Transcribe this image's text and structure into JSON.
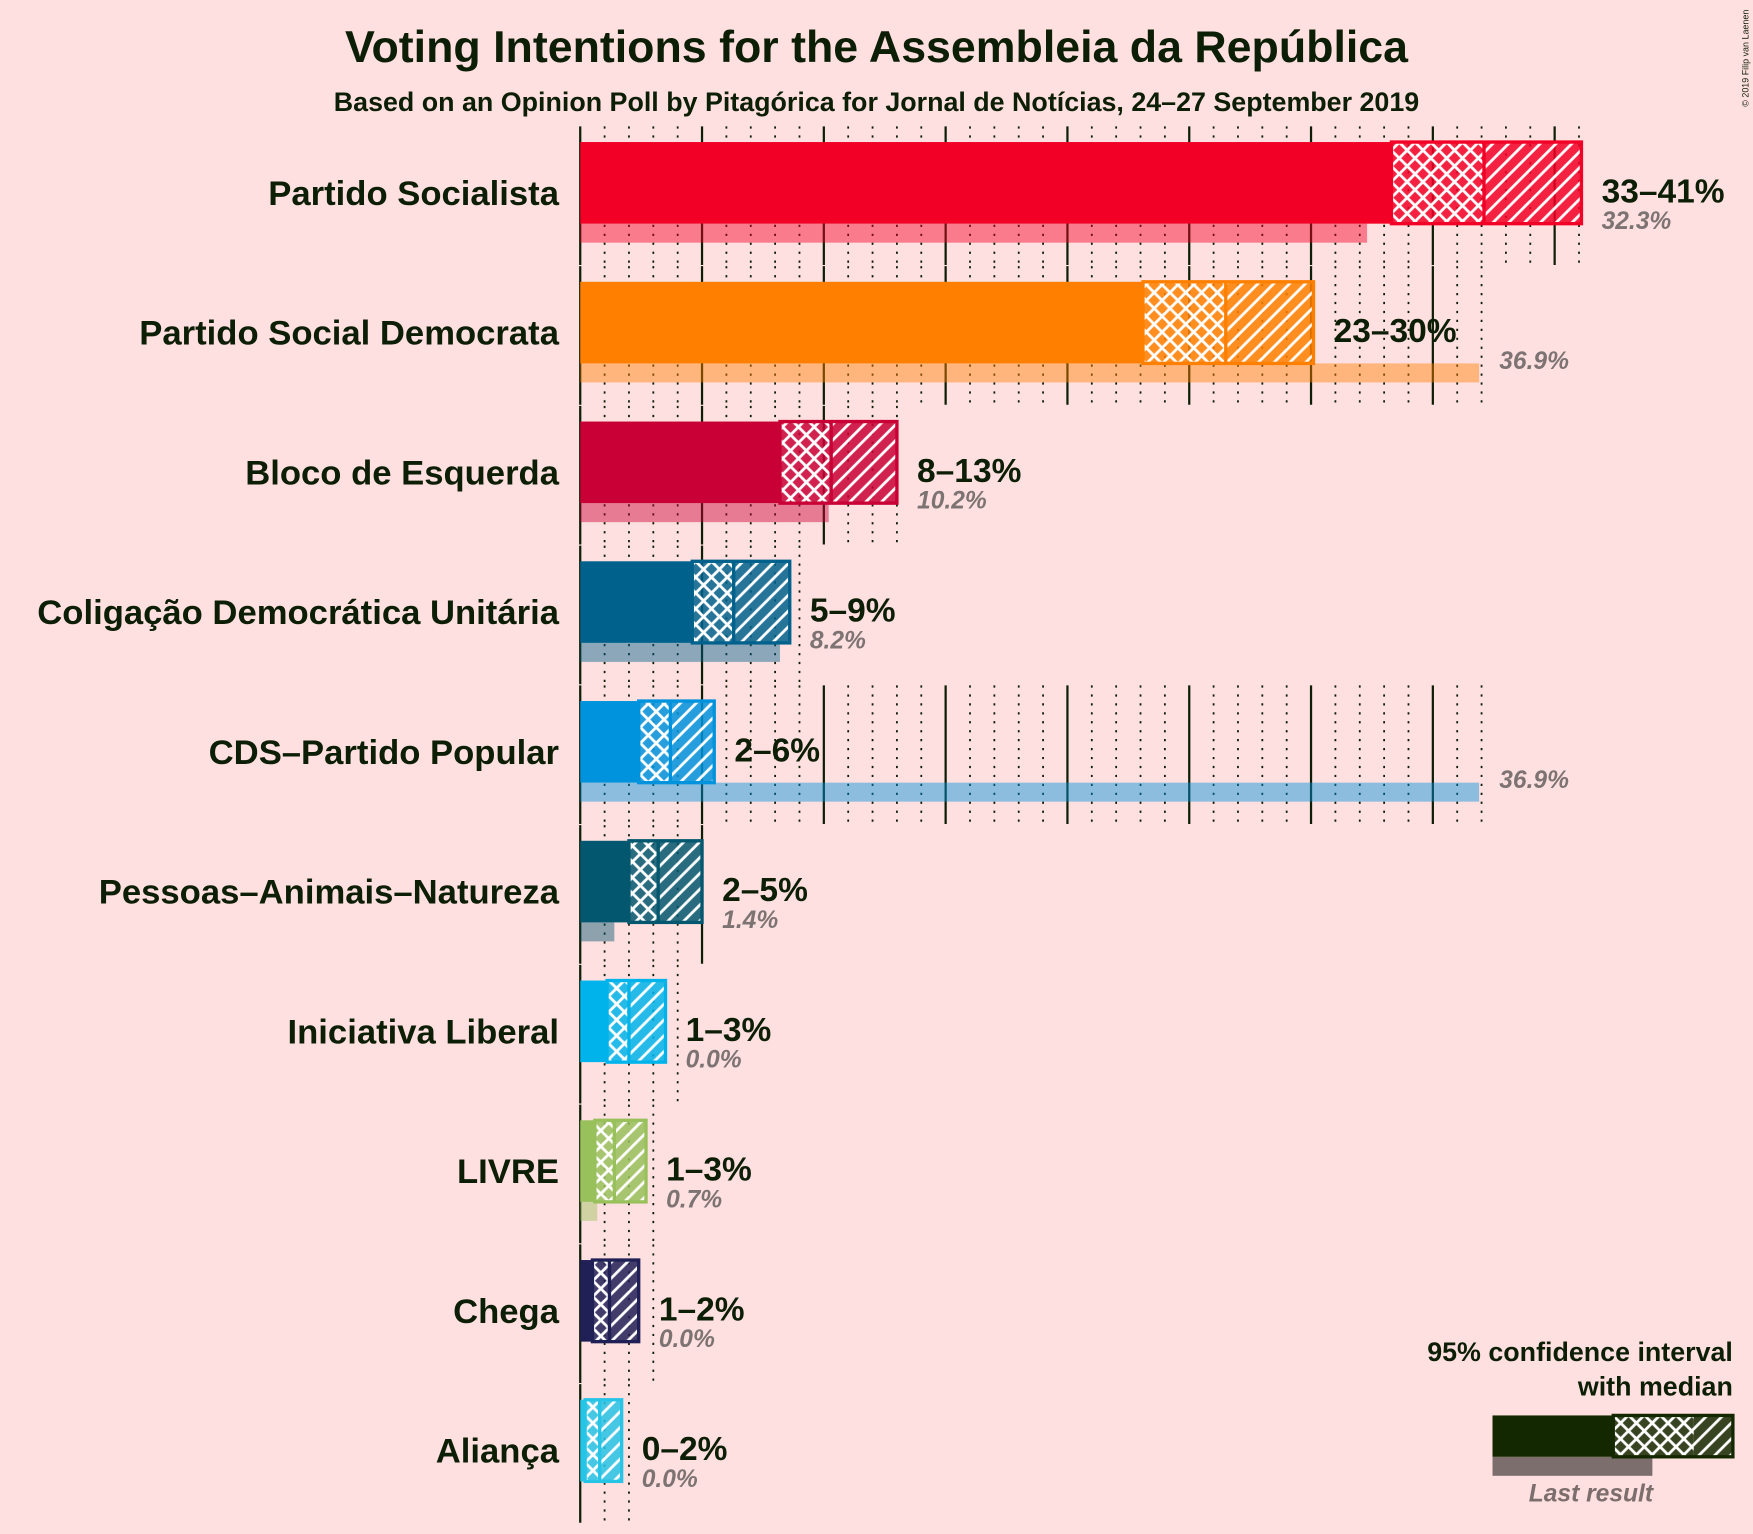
{
  "chart_data": {
    "type": "ci_bar",
    "title": "Voting Intentions for the Assembleia da República",
    "subtitle": "Based on an Opinion Poll by Pitagórica for Jornal de Notícias, 24–27 September 2019",
    "copyright": "© 2019 Filip van Laenen",
    "xlim": [
      0,
      47.5
    ],
    "xticks": [
      0,
      1,
      2,
      3,
      4,
      5,
      6,
      7,
      8,
      9,
      10,
      11,
      12,
      13,
      14,
      15,
      16,
      17,
      18,
      19,
      20,
      21,
      22,
      23,
      24,
      25,
      26,
      27,
      28,
      29,
      30,
      31,
      32,
      33,
      34,
      35,
      36,
      37,
      38,
      39,
      40,
      41
    ],
    "legend": {
      "line1": "95% confidence interval",
      "line2": "with median",
      "last_result": "Last result"
    },
    "series": [
      {
        "name": "Partido Socialista",
        "color": "#f20026",
        "ci_low": 33.3,
        "median": 37.1,
        "ci_high": 41.1,
        "range_label": "33–41%",
        "last_result": 32.3,
        "last_result_label": "32.3%"
      },
      {
        "name": "Partido Social Democrata",
        "color": "#ff8000",
        "ci_low": 23.1,
        "median": 26.5,
        "ci_high": 30.1,
        "range_label": "23–30%",
        "last_result": 36.9,
        "last_result_label": "36.9%"
      },
      {
        "name": "Bloco de Esquerda",
        "color": "#c90035",
        "ci_low": 8.2,
        "median": 10.3,
        "ci_high": 13.0,
        "range_label": "8–13%",
        "last_result": 10.2,
        "last_result_label": "10.2%"
      },
      {
        "name": "Coligação Democrática Unitária",
        "color": "#00628c",
        "ci_low": 4.6,
        "median": 6.3,
        "ci_high": 8.6,
        "range_label": "5–9%",
        "last_result": 8.2,
        "last_result_label": "8.2%"
      },
      {
        "name": "CDS–Partido Popular",
        "color": "#0093dd",
        "ci_low": 2.4,
        "median": 3.7,
        "ci_high": 5.5,
        "range_label": "2–6%",
        "last_result": 36.9,
        "last_result_label": "36.9%"
      },
      {
        "name": "Pessoas–Animais–Natureza",
        "color": "#03576e",
        "ci_low": 2.0,
        "median": 3.2,
        "ci_high": 5.0,
        "range_label": "2–5%",
        "last_result": 1.4,
        "last_result_label": "1.4%"
      },
      {
        "name": "Iniciativa Liberal",
        "color": "#00b4eb",
        "ci_low": 1.1,
        "median": 2.0,
        "ci_high": 3.5,
        "range_label": "1–3%",
        "last_result": 0.0,
        "last_result_label": "0.0%"
      },
      {
        "name": "LIVRE",
        "color": "#98c15c",
        "ci_low": 0.6,
        "median": 1.4,
        "ci_high": 2.7,
        "range_label": "1–3%",
        "last_result": 0.7,
        "last_result_label": "0.7%"
      },
      {
        "name": "Chega",
        "color": "#202056",
        "ci_low": 0.5,
        "median": 1.2,
        "ci_high": 2.4,
        "range_label": "1–2%",
        "last_result": 0.0,
        "last_result_label": "0.0%"
      },
      {
        "name": "Aliança",
        "color": "#26c4e6",
        "ci_low": 0.2,
        "median": 0.8,
        "ci_high": 1.7,
        "range_label": "0–2%",
        "last_result": 0.0,
        "last_result_label": "0.0%"
      }
    ]
  }
}
